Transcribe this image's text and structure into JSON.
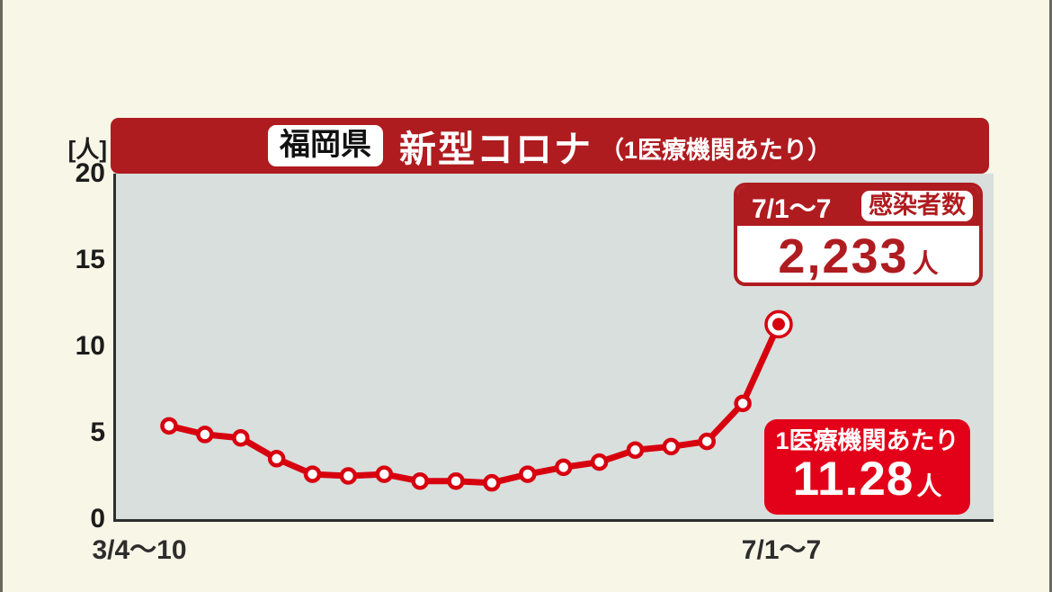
{
  "colors": {
    "page_bg": "#f8f6e7",
    "edge_line": "#6a695c",
    "header_red": "#af1c20",
    "line_red": "#d7000f",
    "callout_red": "#e30019",
    "plot_bg": "#d8dfdd",
    "axis": "#2e2e2e",
    "text_dark": "#1c1c1c"
  },
  "header": {
    "region_label": "福岡県",
    "title": "新型コロナ",
    "subtitle": "（1医療機関あたり）"
  },
  "y_axis": {
    "unit": "[人]",
    "ticks": [
      "20",
      "15",
      "10",
      "5",
      "0"
    ]
  },
  "x_axis": {
    "first_label": "3/4～10",
    "last_label": "7/1～7"
  },
  "info_box": {
    "period": "7/1～7",
    "badge": "感染者数",
    "value": "2,233",
    "unit": "人"
  },
  "callout": {
    "label": "1医療機関あたり",
    "value": "11.28",
    "unit": "人"
  },
  "chart_data": {
    "type": "line",
    "title": "福岡県 新型コロナ（1医療機関あたり）",
    "ylabel": "[人]",
    "ylim": [
      0,
      20
    ],
    "y_ticks": [
      0,
      5,
      10,
      15,
      20
    ],
    "x_tick_labels_visible": [
      "3/4～10",
      "7/1～7"
    ],
    "series": [
      {
        "name": "1医療機関あたり",
        "values": [
          5.4,
          4.9,
          4.7,
          3.5,
          2.6,
          2.5,
          2.6,
          2.2,
          2.2,
          2.1,
          2.6,
          3.0,
          3.3,
          4.0,
          4.2,
          4.5,
          6.7,
          11.28
        ]
      }
    ],
    "last_point_value_label": "11.28人",
    "grid": false,
    "legend": false,
    "line_color": "#d7000f",
    "plot_bg": "#d8dfdd",
    "marker_style": "open-circle",
    "last_marker_style": "bullseye"
  }
}
